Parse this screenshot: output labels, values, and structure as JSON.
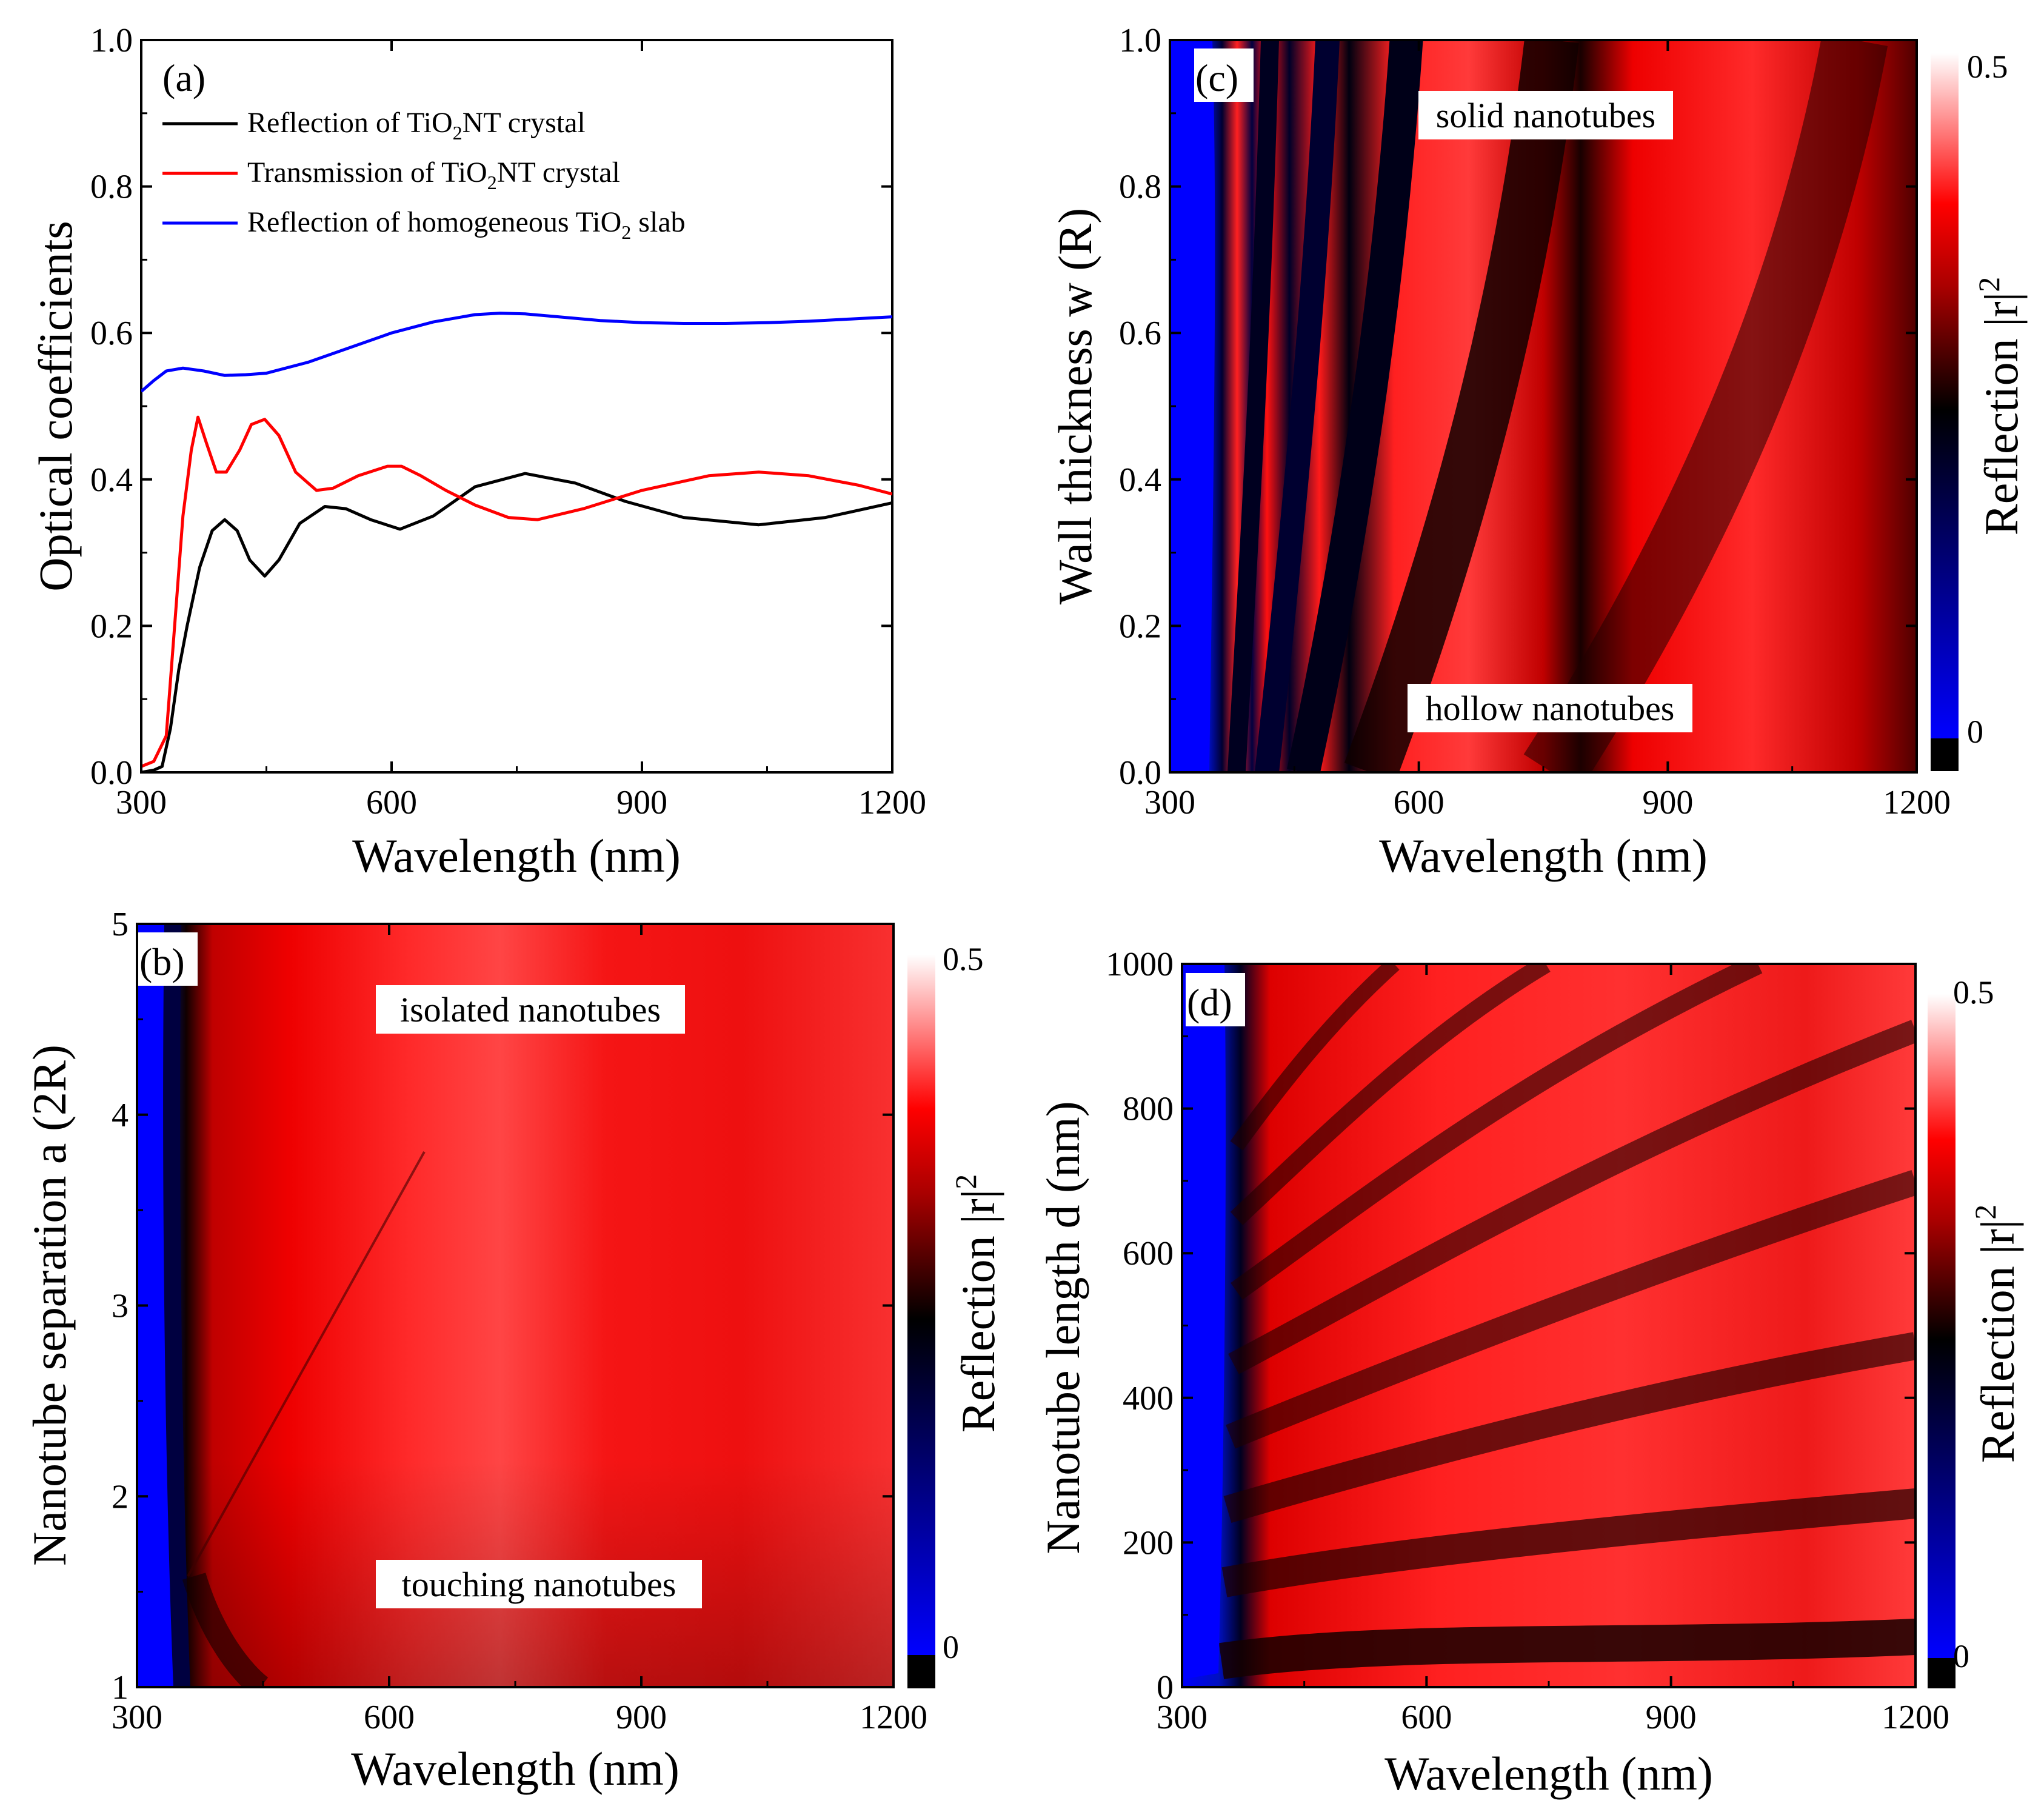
{
  "colors": {
    "black": "#000000",
    "red": "#ff0000",
    "blue": "#0000ff",
    "white": "#ffffff",
    "dark_navy": "#000033"
  },
  "chart_data": [
    {
      "id": "a",
      "type": "line",
      "panel_label": "(a)",
      "xlabel": "Wavelength (nm)",
      "ylabel": "Optical coefficients",
      "xlim": [
        300,
        1200
      ],
      "ylim": [
        0.0,
        1.0
      ],
      "xticks": [
        300,
        600,
        900,
        1200
      ],
      "yticks": [
        0.0,
        0.2,
        0.4,
        0.6,
        0.8,
        1.0
      ],
      "ytick_labels": [
        "0.0",
        "0.2",
        "0.4",
        "0.6",
        "0.8",
        "1.0"
      ],
      "legend": [
        {
          "text": "Reflection of TiO",
          "sub": "2",
          "text2": "NT crystal",
          "color": "#000000"
        },
        {
          "text": "Transmission of TiO",
          "sub": "2",
          "text2": "NT crystal",
          "color": "#ff0000"
        },
        {
          "text": "Reflection of homogeneous TiO",
          "sub": "2",
          "text2": " slab",
          "color": "#0000ff"
        }
      ],
      "series": [
        {
          "name": "Reflection of TiO2NT crystal",
          "color": "#000000",
          "x": [
            300,
            315,
            325,
            335,
            345,
            355,
            370,
            385,
            400,
            415,
            430,
            448,
            465,
            490,
            520,
            545,
            575,
            610,
            650,
            700,
            760,
            820,
            880,
            950,
            1040,
            1120,
            1200
          ],
          "y": [
            0.0,
            0.003,
            0.008,
            0.06,
            0.14,
            0.2,
            0.28,
            0.33,
            0.345,
            0.33,
            0.29,
            0.268,
            0.29,
            0.34,
            0.363,
            0.36,
            0.345,
            0.332,
            0.35,
            0.39,
            0.408,
            0.395,
            0.37,
            0.348,
            0.338,
            0.348,
            0.368
          ]
        },
        {
          "name": "Transmission of TiO2NT crystal",
          "color": "#ff0000",
          "x": [
            300,
            315,
            330,
            340,
            350,
            360,
            368,
            378,
            390,
            402,
            418,
            432,
            448,
            465,
            485,
            510,
            530,
            560,
            595,
            612,
            635,
            665,
            700,
            740,
            775,
            830,
            900,
            980,
            1040,
            1100,
            1160,
            1200
          ],
          "y": [
            0.008,
            0.015,
            0.05,
            0.2,
            0.35,
            0.44,
            0.485,
            0.45,
            0.41,
            0.41,
            0.44,
            0.475,
            0.482,
            0.46,
            0.41,
            0.385,
            0.388,
            0.405,
            0.418,
            0.418,
            0.405,
            0.385,
            0.365,
            0.348,
            0.345,
            0.36,
            0.385,
            0.405,
            0.41,
            0.405,
            0.392,
            0.38
          ]
        },
        {
          "name": "Reflection of homogeneous TiO2 slab",
          "color": "#0000ff",
          "x": [
            300,
            315,
            330,
            350,
            375,
            400,
            425,
            450,
            500,
            550,
            600,
            650,
            700,
            730,
            760,
            800,
            850,
            900,
            950,
            1000,
            1050,
            1100,
            1150,
            1200
          ],
          "y": [
            0.52,
            0.535,
            0.548,
            0.552,
            0.548,
            0.542,
            0.543,
            0.545,
            0.56,
            0.58,
            0.6,
            0.615,
            0.625,
            0.627,
            0.626,
            0.622,
            0.617,
            0.614,
            0.613,
            0.613,
            0.614,
            0.616,
            0.619,
            0.622
          ]
        }
      ]
    },
    {
      "id": "b",
      "type": "heatmap",
      "panel_label": "(b)",
      "xlabel": "Wavelength (nm)",
      "ylabel": "Nanotube separation a (2R)",
      "xlim": [
        300,
        1200
      ],
      "ylim": [
        1,
        5
      ],
      "xticks": [
        300,
        600,
        900,
        1200
      ],
      "yticks": [
        1,
        2,
        3,
        4,
        5
      ],
      "ytick_labels": [
        "1",
        "2",
        "3",
        "4",
        "5"
      ],
      "annotations": [
        "isolated nanotubes",
        "touching nanotubes"
      ],
      "colorbar": {
        "label": "Reflection |r|",
        "sup": "2",
        "range": [
          0,
          0.5
        ],
        "tick_labels": [
          "0",
          "0.5"
        ]
      }
    },
    {
      "id": "c",
      "type": "heatmap",
      "panel_label": "(c)",
      "xlabel": "Wavelength (nm)",
      "ylabel": "Wall thickness w (R)",
      "xlim": [
        300,
        1200
      ],
      "ylim": [
        0.0,
        1.0
      ],
      "xticks": [
        300,
        600,
        900,
        1200
      ],
      "yticks": [
        0.0,
        0.2,
        0.4,
        0.6,
        0.8,
        1.0
      ],
      "ytick_labels": [
        "0.0",
        "0.2",
        "0.4",
        "0.6",
        "0.8",
        "1.0"
      ],
      "annotations": [
        "solid nanotubes",
        "hollow nanotubes"
      ],
      "colorbar": {
        "label": "Reflection |r|",
        "sup": "2",
        "range": [
          0,
          0.5
        ],
        "tick_labels": [
          "0",
          "0.5"
        ]
      }
    },
    {
      "id": "d",
      "type": "heatmap",
      "panel_label": "(d)",
      "xlabel": "Wavelength (nm)",
      "ylabel": "Nanotube length d (nm)",
      "xlim": [
        300,
        1200
      ],
      "ylim": [
        0,
        1000
      ],
      "xticks": [
        300,
        600,
        900,
        1200
      ],
      "yticks": [
        0,
        200,
        400,
        600,
        800,
        1000
      ],
      "ytick_labels": [
        "0",
        "200",
        "400",
        "600",
        "800",
        "1000"
      ],
      "annotations": [],
      "colorbar": {
        "label": "Reflection |r|",
        "sup": "2",
        "range": [
          0,
          0.5
        ],
        "tick_labels": [
          "0",
          "0.5"
        ]
      }
    }
  ]
}
